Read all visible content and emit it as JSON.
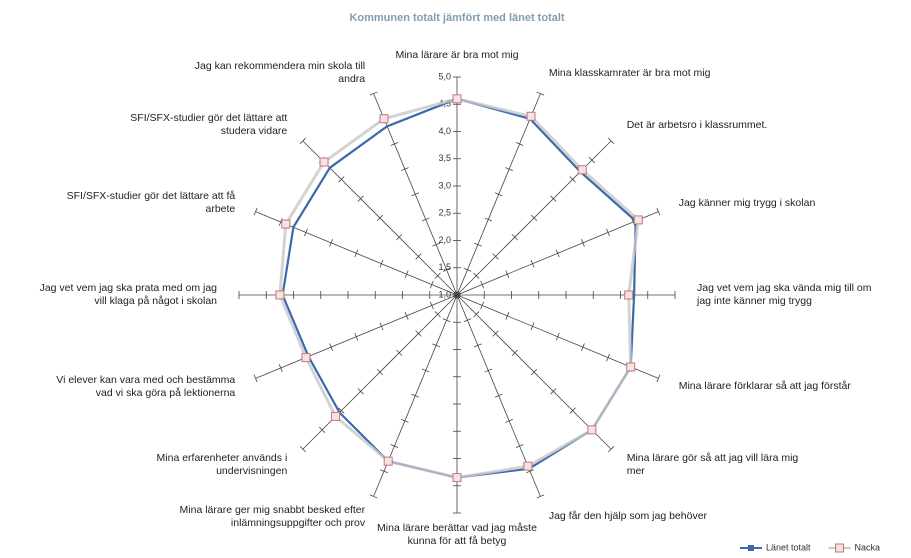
{
  "chart_data": {
    "type": "radar",
    "subtitle": "Kommunen totalt jämfört med länet totalt",
    "categories": [
      "Mina lärare är bra mot mig",
      "Mina klasskamrater är bra mot mig",
      "Det är arbetsro i klassrummet.",
      "Jag känner mig trygg i skolan",
      "Jag vet vem jag ska vända mig till om jag inte känner mig trygg",
      "Mina lärare förklarar så att jag förstår",
      "Mina lärare gör så att jag vill lära mig mer",
      "Jag får den hjälp som jag behöver",
      "Mina lärare berättar vad jag måste kunna för att få betyg",
      "Mina lärare ger mig snabbt besked efter inlämningsuppgifter och prov",
      "Mina erfarenheter används i undervisningen",
      "Vi elever kan vara med och bestämma vad vi ska göra på lektionerna",
      "Jag vet vem jag ska prata med om jag vill klaga på något i skolan",
      "SFI/SFX-studier gör det lättare att få arbete",
      "SFI/SFX-studier gör det lättare att studera vidare",
      "Jag kan rekommendera min skola till andra"
    ],
    "series": [
      {
        "name": "Länet totalt",
        "color": "#3c69ad",
        "values": [
          4.6,
          4.5,
          4.2,
          4.55,
          4.25,
          4.45,
          4.5,
          4.45,
          4.35,
          4.3,
          4.05,
          3.95,
          4.2,
          4.25,
          4.3,
          4.35
        ]
      },
      {
        "name": "Nacka",
        "color": "#c8c8c8",
        "marker_color": "#c0787a",
        "values": [
          4.6,
          4.55,
          4.25,
          4.6,
          4.15,
          4.45,
          4.5,
          4.4,
          4.35,
          4.3,
          4.15,
          4.0,
          4.25,
          4.4,
          4.45,
          4.5
        ]
      }
    ],
    "ylim": [
      1,
      5
    ],
    "yticks": [
      {
        "value": 1,
        "label": "1,0"
      },
      {
        "value": 1.5,
        "label": "1,5"
      },
      {
        "value": 2,
        "label": "2,0"
      },
      {
        "value": 2.5,
        "label": "2,5"
      },
      {
        "value": 3,
        "label": "3,0"
      },
      {
        "value": 3.5,
        "label": "3,5"
      },
      {
        "value": 4,
        "label": "4,0"
      },
      {
        "value": 4.5,
        "label": "4,5"
      },
      {
        "value": 5,
        "label": "5,0"
      }
    ],
    "legend": "bottom-right"
  }
}
